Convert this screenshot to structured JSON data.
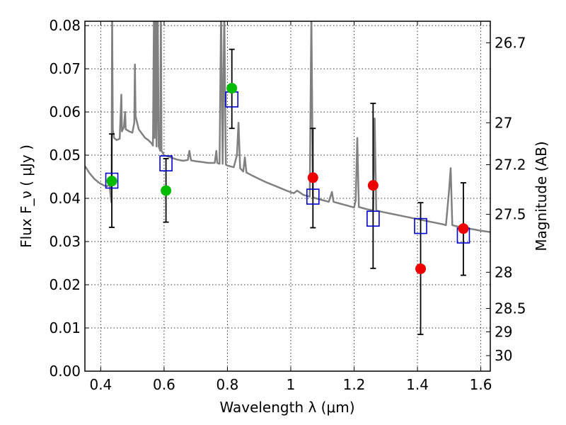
{
  "chart_data": {
    "type": "scatter",
    "xlabel": "Wavelength  λ (μm)",
    "ylabel": "Flux  F_ν  ( μJy )",
    "y2label": "Magnitude (AB)",
    "xlim": [
      0.35,
      1.63
    ],
    "ylim": [
      0.0,
      0.081
    ],
    "grid": true,
    "xticks": [
      0.4,
      0.6,
      0.8,
      1.0,
      1.2,
      1.4,
      1.6
    ],
    "xtick_labels": [
      "0.4",
      "0.6",
      "0.8",
      "1",
      "1.2",
      "1.4",
      "1.6"
    ],
    "yticks": [
      0.0,
      0.01,
      0.02,
      0.03,
      0.04,
      0.05,
      0.06,
      0.07,
      0.08
    ],
    "ytick_labels": [
      "0.00",
      "0.01",
      "0.02",
      "0.03",
      "0.04",
      "0.05",
      "0.06",
      "0.07",
      "0.08"
    ],
    "mag_ticks": [
      {
        "label": "26.7",
        "flux": 0.076
      },
      {
        "label": "27",
        "flux": 0.0575
      },
      {
        "label": "27.2",
        "flux": 0.0478
      },
      {
        "label": "27.5",
        "flux": 0.0363
      },
      {
        "label": "28",
        "flux": 0.0229
      },
      {
        "label": "28.5",
        "flux": 0.0145
      },
      {
        "label": "29",
        "flux": 0.0091
      },
      {
        "label": "30",
        "flux": 0.0036
      }
    ],
    "colors": {
      "model": "#808080",
      "green": "#00bb00",
      "red": "#ee0000",
      "square": "#0000cc",
      "errorbar": "#000000"
    },
    "series": [
      {
        "marker": "square",
        "x": [
          0.435,
          0.606,
          0.814,
          1.07,
          1.26,
          1.41,
          1.545
        ],
        "y": [
          0.0441,
          0.0481,
          0.0629,
          0.0404,
          0.0353,
          0.0336,
          0.0314
        ]
      },
      {
        "marker": "circle-green",
        "x": [
          0.435,
          0.606,
          0.814
        ],
        "y": [
          0.044,
          0.0418,
          0.0655
        ],
        "yerr_low": [
          0.0333,
          0.0345,
          0.0562
        ],
        "yerr_high": [
          0.0549,
          0.0492,
          0.0745
        ]
      },
      {
        "marker": "circle-red",
        "x": [
          1.07,
          1.26,
          1.41,
          1.545
        ],
        "y": [
          0.0448,
          0.043,
          0.0237,
          0.033
        ],
        "yerr_low": [
          0.0332,
          0.0238,
          0.0085,
          0.0222
        ],
        "yerr_high": [
          0.0562,
          0.062,
          0.039,
          0.0436
        ]
      }
    ],
    "model_spectrum": [
      [
        0.35,
        0.0475
      ],
      [
        0.365,
        0.0458
      ],
      [
        0.38,
        0.0445
      ],
      [
        0.395,
        0.0436
      ],
      [
        0.41,
        0.043
      ],
      [
        0.42,
        0.0428
      ],
      [
        0.428,
        0.0432
      ],
      [
        0.432,
        0.04
      ],
      [
        0.434,
        0.039
      ],
      [
        0.436,
        0.083
      ],
      [
        0.438,
        0.056
      ],
      [
        0.442,
        0.054
      ],
      [
        0.45,
        0.0535
      ],
      [
        0.46,
        0.0538
      ],
      [
        0.465,
        0.064
      ],
      [
        0.467,
        0.0555
      ],
      [
        0.473,
        0.0565
      ],
      [
        0.477,
        0.06
      ],
      [
        0.479,
        0.056
      ],
      [
        0.49,
        0.0555
      ],
      [
        0.5,
        0.0552
      ],
      [
        0.506,
        0.0575
      ],
      [
        0.508,
        0.071
      ],
      [
        0.51,
        0.059
      ],
      [
        0.52,
        0.056
      ],
      [
        0.53,
        0.055
      ],
      [
        0.54,
        0.054
      ],
      [
        0.55,
        0.0535
      ],
      [
        0.56,
        0.0528
      ],
      [
        0.565,
        0.0522
      ],
      [
        0.568,
        0.083
      ],
      [
        0.57,
        0.054
      ],
      [
        0.574,
        0.083
      ],
      [
        0.576,
        0.052
      ],
      [
        0.58,
        0.083
      ],
      [
        0.583,
        0.052
      ],
      [
        0.588,
        0.051
      ],
      [
        0.59,
        0.083
      ],
      [
        0.592,
        0.051
      ],
      [
        0.6,
        0.05
      ],
      [
        0.62,
        0.0495
      ],
      [
        0.64,
        0.049
      ],
      [
        0.66,
        0.0487
      ],
      [
        0.675,
        0.0489
      ],
      [
        0.68,
        0.051
      ],
      [
        0.685,
        0.0488
      ],
      [
        0.7,
        0.0486
      ],
      [
        0.72,
        0.0484
      ],
      [
        0.74,
        0.0482
      ],
      [
        0.76,
        0.0482
      ],
      [
        0.765,
        0.051
      ],
      [
        0.768,
        0.0482
      ],
      [
        0.775,
        0.048
      ],
      [
        0.78,
        0.083
      ],
      [
        0.785,
        0.048
      ],
      [
        0.79,
        0.083
      ],
      [
        0.795,
        0.0478
      ],
      [
        0.8,
        0.0476
      ],
      [
        0.82,
        0.0472
      ],
      [
        0.83,
        0.05
      ],
      [
        0.835,
        0.0575
      ],
      [
        0.84,
        0.047
      ],
      [
        0.85,
        0.0462
      ],
      [
        0.855,
        0.0495
      ],
      [
        0.86,
        0.046
      ],
      [
        0.88,
        0.0452
      ],
      [
        0.9,
        0.0445
      ],
      [
        0.92,
        0.0438
      ],
      [
        0.94,
        0.0432
      ],
      [
        0.96,
        0.0426
      ],
      [
        0.98,
        0.042
      ],
      [
        1.0,
        0.0414
      ],
      [
        1.01,
        0.0412
      ],
      [
        1.02,
        0.0418
      ],
      [
        1.04,
        0.0408
      ],
      [
        1.06,
        0.0404
      ],
      [
        1.065,
        0.083
      ],
      [
        1.07,
        0.0402
      ],
      [
        1.09,
        0.0398
      ],
      [
        1.1,
        0.0396
      ],
      [
        1.12,
        0.0392
      ],
      [
        1.13,
        0.0415
      ],
      [
        1.135,
        0.0392
      ],
      [
        1.16,
        0.0387
      ],
      [
        1.18,
        0.0383
      ],
      [
        1.2,
        0.0379
      ],
      [
        1.205,
        0.0395
      ],
      [
        1.21,
        0.054
      ],
      [
        1.215,
        0.038
      ],
      [
        1.24,
        0.0375
      ],
      [
        1.26,
        0.0372
      ],
      [
        1.265,
        0.0585
      ],
      [
        1.27,
        0.0372
      ],
      [
        1.28,
        0.037
      ],
      [
        1.3,
        0.0367
      ],
      [
        1.32,
        0.0364
      ],
      [
        1.34,
        0.0361
      ],
      [
        1.36,
        0.0358
      ],
      [
        1.38,
        0.0355
      ],
      [
        1.4,
        0.0352
      ],
      [
        1.42,
        0.0349
      ],
      [
        1.44,
        0.0346
      ],
      [
        1.46,
        0.0343
      ],
      [
        1.48,
        0.034
      ],
      [
        1.49,
        0.0338
      ],
      [
        1.5,
        0.042
      ],
      [
        1.505,
        0.047
      ],
      [
        1.51,
        0.0338
      ],
      [
        1.52,
        0.0336
      ],
      [
        1.54,
        0.0333
      ],
      [
        1.56,
        0.033
      ],
      [
        1.58,
        0.0328
      ],
      [
        1.6,
        0.0325
      ],
      [
        1.63,
        0.0322
      ]
    ]
  }
}
